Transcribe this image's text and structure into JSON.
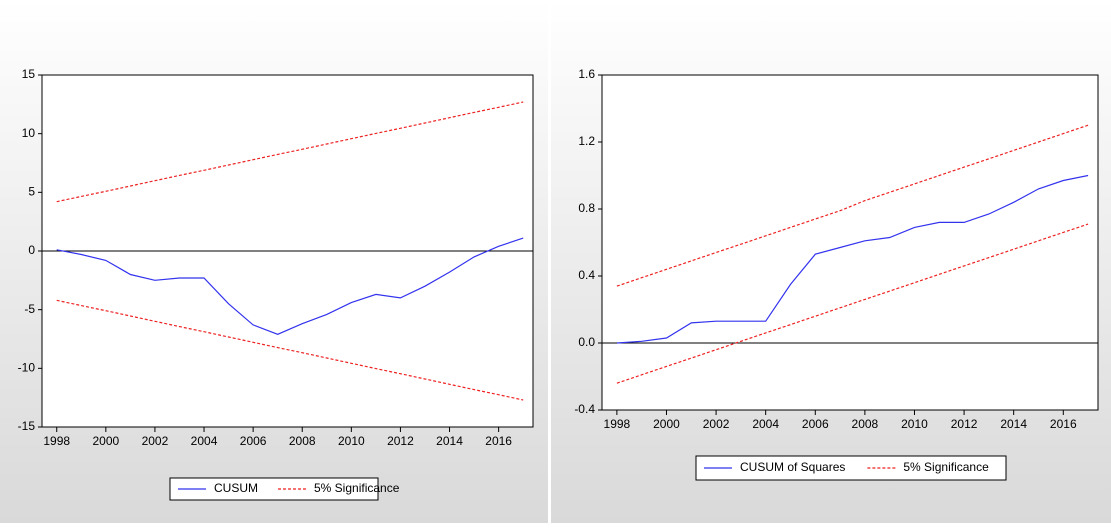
{
  "chart_data": [
    {
      "type": "line",
      "reference_line": 0,
      "x": [
        1998,
        1999,
        2000,
        2001,
        2002,
        2003,
        2004,
        2005,
        2006,
        2007,
        2008,
        2009,
        2010,
        2011,
        2012,
        2013,
        2014,
        2015,
        2016,
        2017
      ],
      "xlim": [
        1997.4,
        2017.4
      ],
      "xticks": [
        1998,
        2000,
        2002,
        2004,
        2006,
        2008,
        2010,
        2012,
        2014,
        2016
      ],
      "ylim": [
        -15,
        15
      ],
      "yticks": [
        -15,
        -10,
        -5,
        0,
        5,
        10,
        15
      ],
      "series": [
        {
          "name": "CUSUM",
          "color": "#3333ee",
          "values": [
            0.1,
            -0.3,
            -0.8,
            -2.0,
            -2.5,
            -2.3,
            -2.3,
            -4.5,
            -6.3,
            -7.1,
            -6.2,
            -5.4,
            -4.4,
            -3.7,
            -4.0,
            -3.0,
            -1.8,
            -0.5,
            0.4,
            1.1
          ]
        },
        {
          "name": "5% Significance",
          "color": "#ee2222",
          "dashed": true,
          "upper": [
            4.2,
            4.65,
            5.09,
            5.54,
            5.99,
            6.44,
            6.88,
            7.33,
            7.78,
            8.23,
            8.67,
            9.12,
            9.57,
            10.02,
            10.46,
            10.91,
            11.36,
            11.81,
            12.25,
            12.7
          ],
          "lower": [
            -4.2,
            -4.65,
            -5.09,
            -5.54,
            -5.99,
            -6.44,
            -6.88,
            -7.33,
            -7.78,
            -8.23,
            -8.67,
            -9.12,
            -9.57,
            -10.02,
            -10.46,
            -10.91,
            -11.36,
            -11.81,
            -12.25,
            -12.7
          ]
        }
      ]
    },
    {
      "type": "line",
      "reference_line": 0,
      "x": [
        1998,
        1999,
        2000,
        2001,
        2002,
        2003,
        2004,
        2005,
        2006,
        2007,
        2008,
        2009,
        2010,
        2011,
        2012,
        2013,
        2014,
        2015,
        2016,
        2017
      ],
      "xlim": [
        1997.4,
        2017.4
      ],
      "xticks": [
        1998,
        2000,
        2002,
        2004,
        2006,
        2008,
        2010,
        2012,
        2014,
        2016
      ],
      "ylim": [
        -0.4,
        1.6
      ],
      "yticks": [
        -0.4,
        {
          "value": 0,
          "label": "0.0"
        },
        0.4,
        0.8,
        1.2,
        1.6
      ],
      "series": [
        {
          "name": "CUSUM of Squares",
          "color": "#3333ee",
          "values": [
            0,
            0.01,
            0.03,
            0.12,
            0.13,
            0.13,
            0.13,
            0.35,
            0.53,
            0.57,
            0.61,
            0.63,
            0.69,
            0.72,
            0.72,
            0.77,
            0.84,
            0.92,
            0.97,
            1.0
          ]
        },
        {
          "name": "5% Significance",
          "color": "#ee2222",
          "dashed": true,
          "upper": [
            0.34,
            0.39,
            0.44,
            0.49,
            0.54,
            0.59,
            0.64,
            0.69,
            0.74,
            0.79,
            0.85,
            0.9,
            0.95,
            1.0,
            1.05,
            1.1,
            1.15,
            1.2,
            1.25,
            1.3
          ],
          "lower": [
            -0.24,
            -0.19,
            -0.14,
            -0.09,
            -0.04,
            0.01,
            0.06,
            0.11,
            0.16,
            0.21,
            0.26,
            0.31,
            0.36,
            0.41,
            0.46,
            0.51,
            0.56,
            0.61,
            0.66,
            0.71
          ]
        }
      ]
    }
  ]
}
